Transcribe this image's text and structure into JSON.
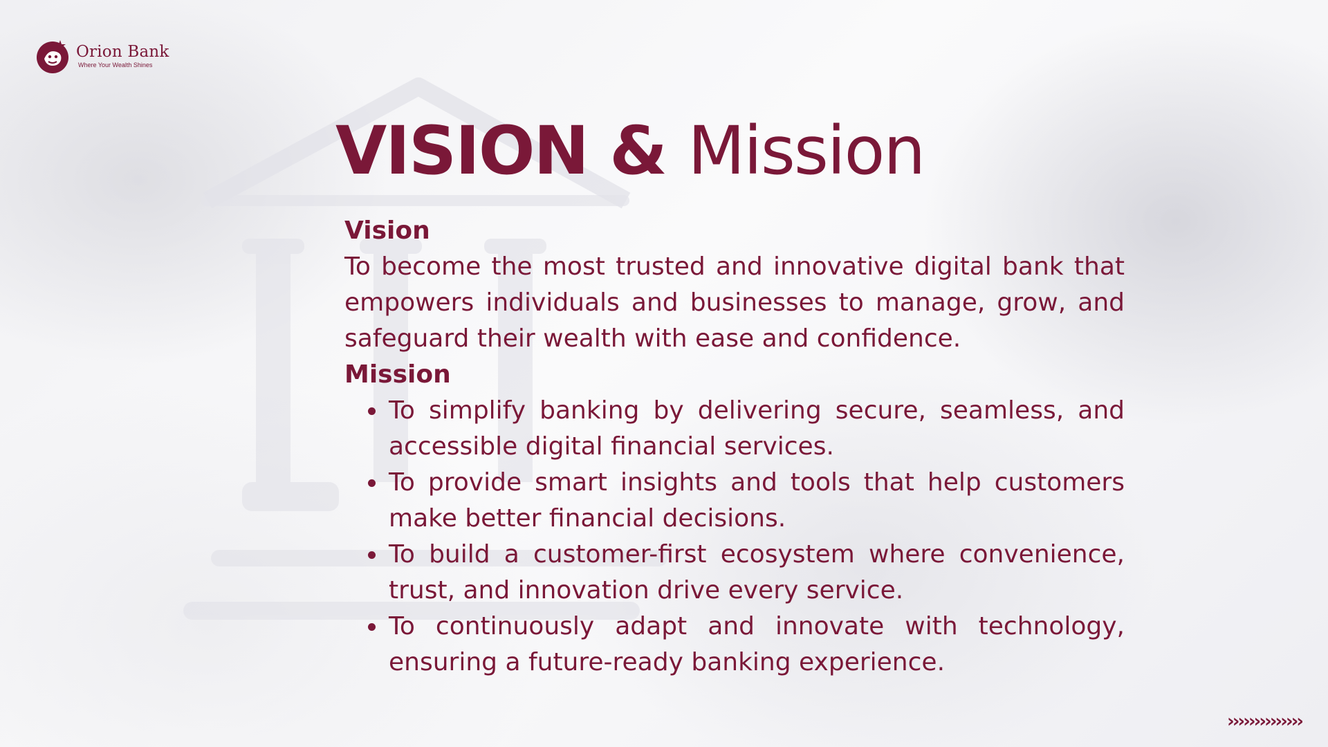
{
  "brand": {
    "name": "Orion Bank",
    "tagline": "Where Your Wealth Shines",
    "color": "#7a1838",
    "logo_icon": "orion-bull-star-logo"
  },
  "title": {
    "bold": "VISION &",
    "light": "Mission"
  },
  "vision": {
    "heading": "Vision",
    "text": "To become the most trusted and innovative digital bank that empowers individuals and businesses to manage, grow, and safeguard their wealth with ease and confidence."
  },
  "mission": {
    "heading": "Mission",
    "items": [
      "To simplify banking by delivering secure, seamless, and accessible digital financial services.",
      "To provide smart insights and tools that help customers make better financial decisions.",
      "To build a customer-first ecosystem where convenience, trust, and innovation drive every service.",
      "To continuously adapt and innovate with technology, ensuring a future-ready banking experience."
    ]
  },
  "decoration": {
    "chevrons": "››››››››››››››",
    "icon": "chevron-right-icon"
  }
}
